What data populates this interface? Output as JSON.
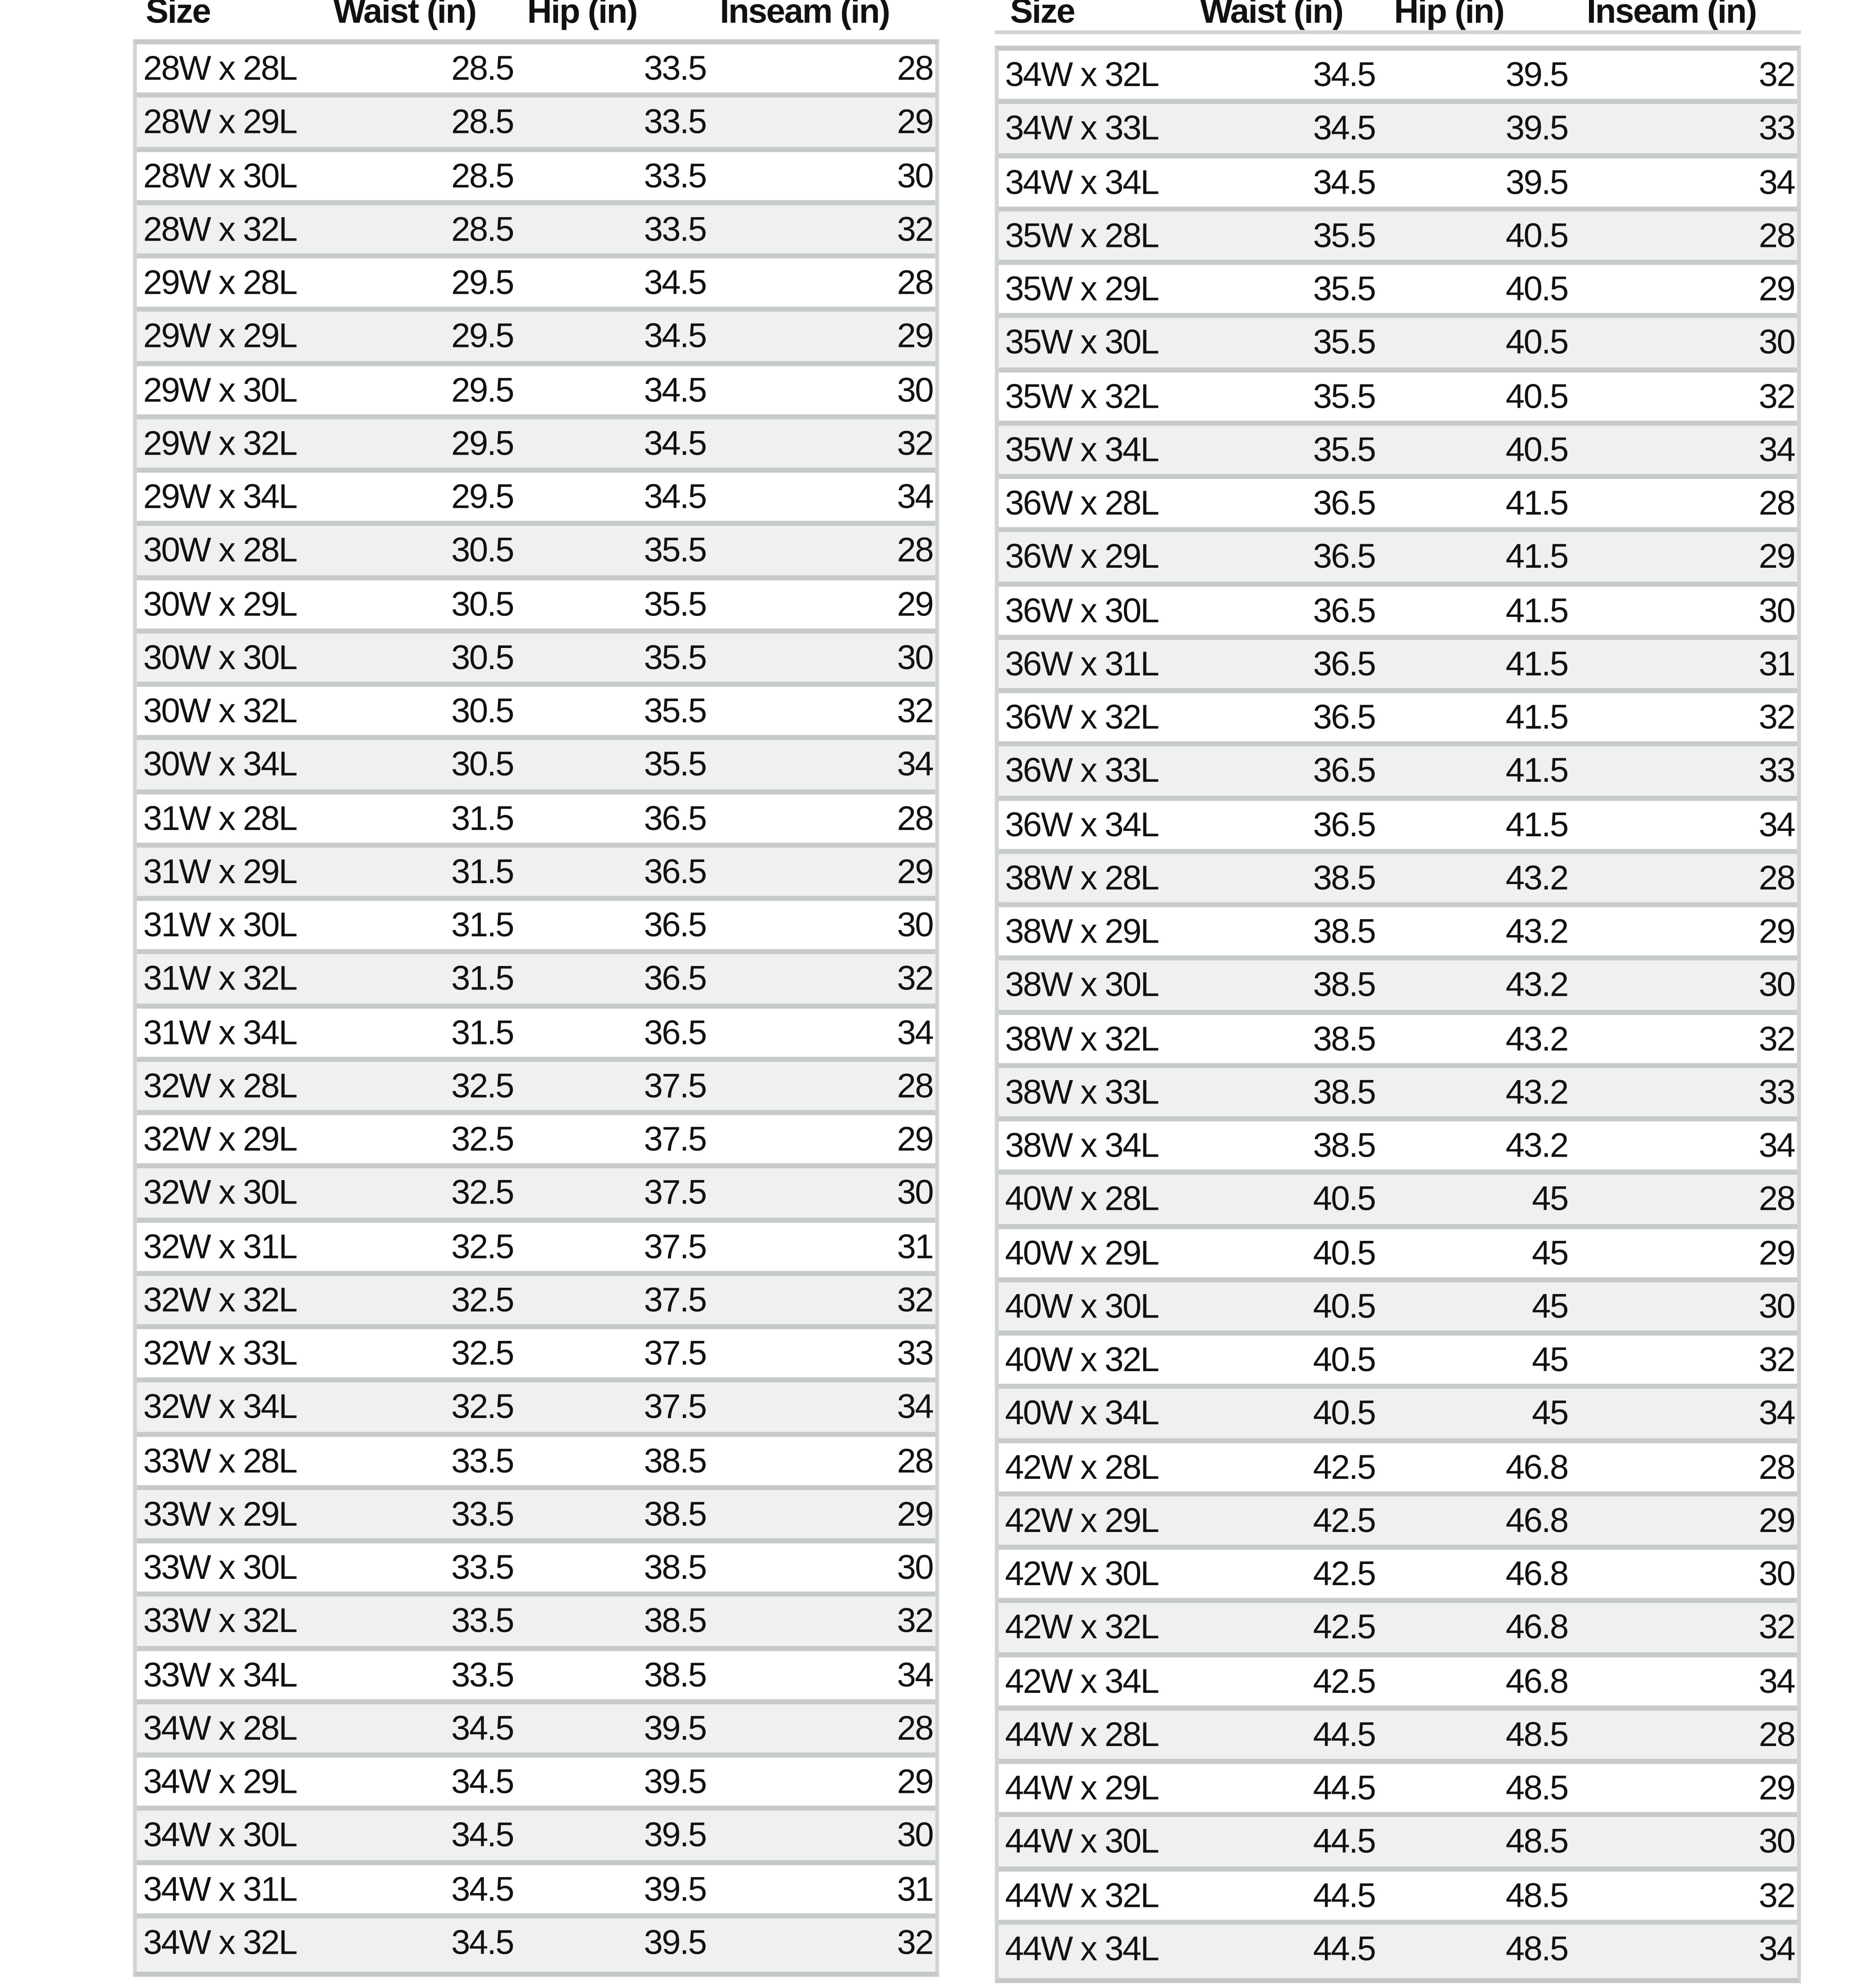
{
  "tables": [
    {
      "headers": [
        "Size",
        "Waist (in)",
        "Hip (in)",
        "Inseam (in)"
      ],
      "rows": [
        [
          "28W x 28L",
          "28.5",
          "33.5",
          "28"
        ],
        [
          "28W x 29L",
          "28.5",
          "33.5",
          "29"
        ],
        [
          "28W x 30L",
          "28.5",
          "33.5",
          "30"
        ],
        [
          "28W x 32L",
          "28.5",
          "33.5",
          "32"
        ],
        [
          "29W x 28L",
          "29.5",
          "34.5",
          "28"
        ],
        [
          "29W x 29L",
          "29.5",
          "34.5",
          "29"
        ],
        [
          "29W x 30L",
          "29.5",
          "34.5",
          "30"
        ],
        [
          "29W x 32L",
          "29.5",
          "34.5",
          "32"
        ],
        [
          "29W x 34L",
          "29.5",
          "34.5",
          "34"
        ],
        [
          "30W x 28L",
          "30.5",
          "35.5",
          "28"
        ],
        [
          "30W x 29L",
          "30.5",
          "35.5",
          "29"
        ],
        [
          "30W x 30L",
          "30.5",
          "35.5",
          "30"
        ],
        [
          "30W x 32L",
          "30.5",
          "35.5",
          "32"
        ],
        [
          "30W x 34L",
          "30.5",
          "35.5",
          "34"
        ],
        [
          "31W x 28L",
          "31.5",
          "36.5",
          "28"
        ],
        [
          "31W x 29L",
          "31.5",
          "36.5",
          "29"
        ],
        [
          "31W x 30L",
          "31.5",
          "36.5",
          "30"
        ],
        [
          "31W x 32L",
          "31.5",
          "36.5",
          "32"
        ],
        [
          "31W x 34L",
          "31.5",
          "36.5",
          "34"
        ],
        [
          "32W x 28L",
          "32.5",
          "37.5",
          "28"
        ],
        [
          "32W x 29L",
          "32.5",
          "37.5",
          "29"
        ],
        [
          "32W x 30L",
          "32.5",
          "37.5",
          "30"
        ],
        [
          "32W x 31L",
          "32.5",
          "37.5",
          "31"
        ],
        [
          "32W x 32L",
          "32.5",
          "37.5",
          "32"
        ],
        [
          "32W x 33L",
          "32.5",
          "37.5",
          "33"
        ],
        [
          "32W x 34L",
          "32.5",
          "37.5",
          "34"
        ],
        [
          "33W x 28L",
          "33.5",
          "38.5",
          "28"
        ],
        [
          "33W x 29L",
          "33.5",
          "38.5",
          "29"
        ],
        [
          "33W x 30L",
          "33.5",
          "38.5",
          "30"
        ],
        [
          "33W x 32L",
          "33.5",
          "38.5",
          "32"
        ],
        [
          "33W x 34L",
          "33.5",
          "38.5",
          "34"
        ],
        [
          "34W x 28L",
          "34.5",
          "39.5",
          "28"
        ],
        [
          "34W x 29L",
          "34.5",
          "39.5",
          "29"
        ],
        [
          "34W x 30L",
          "34.5",
          "39.5",
          "30"
        ],
        [
          "34W x 31L",
          "34.5",
          "39.5",
          "31"
        ],
        [
          "34W x 32L",
          "34.5",
          "39.5",
          "32"
        ]
      ]
    },
    {
      "headers": [
        "Size",
        "Waist (in)",
        "Hip (in)",
        "Inseam (in)"
      ],
      "rows": [
        [
          "34W x 32L",
          "34.5",
          "39.5",
          "32"
        ],
        [
          "34W x 33L",
          "34.5",
          "39.5",
          "33"
        ],
        [
          "34W x 34L",
          "34.5",
          "39.5",
          "34"
        ],
        [
          "35W x 28L",
          "35.5",
          "40.5",
          "28"
        ],
        [
          "35W x 29L",
          "35.5",
          "40.5",
          "29"
        ],
        [
          "35W x 30L",
          "35.5",
          "40.5",
          "30"
        ],
        [
          "35W x 32L",
          "35.5",
          "40.5",
          "32"
        ],
        [
          "35W x 34L",
          "35.5",
          "40.5",
          "34"
        ],
        [
          "36W x 28L",
          "36.5",
          "41.5",
          "28"
        ],
        [
          "36W x 29L",
          "36.5",
          "41.5",
          "29"
        ],
        [
          "36W x 30L",
          "36.5",
          "41.5",
          "30"
        ],
        [
          "36W x 31L",
          "36.5",
          "41.5",
          "31"
        ],
        [
          "36W x 32L",
          "36.5",
          "41.5",
          "32"
        ],
        [
          "36W x 33L",
          "36.5",
          "41.5",
          "33"
        ],
        [
          "36W x 34L",
          "36.5",
          "41.5",
          "34"
        ],
        [
          "38W x 28L",
          "38.5",
          "43.2",
          "28"
        ],
        [
          "38W x 29L",
          "38.5",
          "43.2",
          "29"
        ],
        [
          "38W x 30L",
          "38.5",
          "43.2",
          "30"
        ],
        [
          "38W x 32L",
          "38.5",
          "43.2",
          "32"
        ],
        [
          "38W x 33L",
          "38.5",
          "43.2",
          "33"
        ],
        [
          "38W x 34L",
          "38.5",
          "43.2",
          "34"
        ],
        [
          "40W x 28L",
          "40.5",
          "45",
          "28"
        ],
        [
          "40W x 29L",
          "40.5",
          "45",
          "29"
        ],
        [
          "40W x 30L",
          "40.5",
          "45",
          "30"
        ],
        [
          "40W x 32L",
          "40.5",
          "45",
          "32"
        ],
        [
          "40W x 34L",
          "40.5",
          "45",
          "34"
        ],
        [
          "42W x 28L",
          "42.5",
          "46.8",
          "28"
        ],
        [
          "42W x 29L",
          "42.5",
          "46.8",
          "29"
        ],
        [
          "42W x 30L",
          "42.5",
          "46.8",
          "30"
        ],
        [
          "42W x 32L",
          "42.5",
          "46.8",
          "32"
        ],
        [
          "42W x 34L",
          "42.5",
          "46.8",
          "34"
        ],
        [
          "44W x 28L",
          "44.5",
          "48.5",
          "28"
        ],
        [
          "44W x 29L",
          "44.5",
          "48.5",
          "29"
        ],
        [
          "44W x 30L",
          "44.5",
          "48.5",
          "30"
        ],
        [
          "44W x 32L",
          "44.5",
          "48.5",
          "32"
        ],
        [
          "44W x 34L",
          "44.5",
          "48.5",
          "34"
        ]
      ]
    }
  ],
  "colors": {
    "alt_row": "#eef1f0",
    "separator": "#c6cac9",
    "text": "#111111"
  }
}
